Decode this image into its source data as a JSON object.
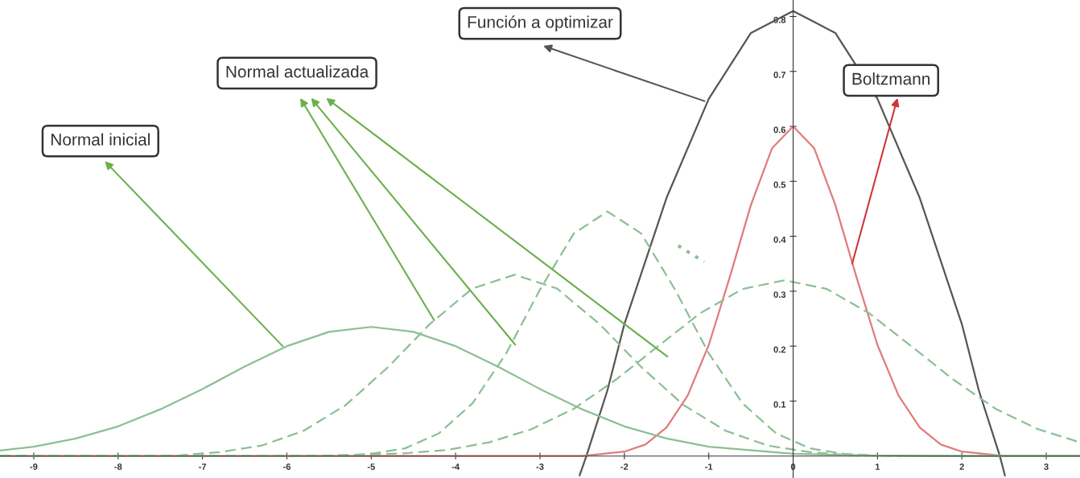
{
  "chart_data": {
    "type": "line",
    "xlim": [
      -9.4,
      3.4
    ],
    "ylim": [
      -0.04,
      0.83
    ],
    "xticks": [
      -9,
      -8,
      -7,
      -6,
      -5,
      -4,
      -3,
      -2,
      -1,
      0,
      1,
      2,
      3
    ],
    "yticks": [
      0.1,
      0.2,
      0.3,
      0.4,
      0.5,
      0.6,
      0.7,
      0.8
    ],
    "grid": false,
    "legend": false,
    "marker": "none",
    "series": [
      {
        "color": "#555555",
        "line_style": "solid",
        "x": [
          -2.53,
          -2.45,
          -2.2,
          -2,
          -1.5,
          -1,
          -0.5,
          0,
          0.5,
          1,
          1.5,
          2,
          2.2,
          2.45,
          2.51
        ],
        "values": [
          -0.035,
          0,
          0.12,
          0.24,
          0.47,
          0.65,
          0.77,
          0.81,
          0.77,
          0.65,
          0.47,
          0.24,
          0.12,
          0,
          -0.035
        ]
      },
      {
        "color": "#e07b7b",
        "line_style": "solid",
        "x": [
          -9.4,
          -2.5,
          -2,
          -1.75,
          -1.5,
          -1.25,
          -1,
          -0.75,
          -0.5,
          -0.25,
          0,
          0.25,
          0.5,
          0.75,
          1,
          1.25,
          1.5,
          1.75,
          2,
          2.5,
          3.4
        ],
        "values": [
          0,
          0,
          0.008,
          0.021,
          0.052,
          0.11,
          0.202,
          0.326,
          0.457,
          0.56,
          0.6,
          0.56,
          0.457,
          0.326,
          0.202,
          0.11,
          0.052,
          0.021,
          0.008,
          0,
          0
        ]
      },
      {
        "color": "#8cbf94",
        "line_style": "solid",
        "x": [
          -9.4,
          -9,
          -8.5,
          -8,
          -7.5,
          -7,
          -6.5,
          -6,
          -5.5,
          -5,
          -4.5,
          -4,
          -3.5,
          -3,
          -2.5,
          -2,
          -1.5,
          -1,
          0,
          1,
          2,
          3.4
        ],
        "values": [
          0.01,
          0.017,
          0.032,
          0.054,
          0.085,
          0.122,
          0.163,
          0.2,
          0.226,
          0.235,
          0.226,
          0.2,
          0.163,
          0.122,
          0.085,
          0.054,
          0.032,
          0.017,
          0.004,
          0.001,
          0,
          0
        ]
      },
      {
        "color": "#8cbf94",
        "line_style": "dashed",
        "x": [
          -9.4,
          -8.3,
          -7.3,
          -6.8,
          -6.3,
          -5.8,
          -5.3,
          -4.8,
          -4.3,
          -3.8,
          -3.3,
          -2.8,
          -2.3,
          -1.8,
          -1.3,
          -0.8,
          -0.3,
          0.2,
          0.7,
          1.7,
          3.4
        ],
        "values": [
          0,
          0,
          0.001,
          0.007,
          0.019,
          0.046,
          0.093,
          0.162,
          0.241,
          0.305,
          0.33,
          0.305,
          0.241,
          0.162,
          0.093,
          0.046,
          0.019,
          0.007,
          0.001,
          0,
          0
        ]
      },
      {
        "color": "#8cbf94",
        "line_style": "dashed",
        "x": [
          -9.4,
          -6.2,
          -5.4,
          -5.0,
          -4.6,
          -4.2,
          -3.8,
          -3.4,
          -3.0,
          -2.6,
          -2.2,
          -1.8,
          -1.4,
          -1.0,
          -0.6,
          -0.2,
          0.2,
          0.6,
          1.0,
          1.8,
          3.4
        ],
        "values": [
          0,
          0,
          0.001,
          0.004,
          0.014,
          0.041,
          0.096,
          0.187,
          0.303,
          0.405,
          0.445,
          0.405,
          0.303,
          0.187,
          0.096,
          0.041,
          0.014,
          0.004,
          0.001,
          0,
          0
        ]
      },
      {
        "color": "#8cbf94",
        "line_style": "dashed",
        "x": [
          -9.4,
          -6.1,
          -5.1,
          -4.6,
          -4.1,
          -3.6,
          -3.1,
          -2.6,
          -2.1,
          -1.6,
          -1.1,
          -0.6,
          -0.1,
          0.4,
          0.9,
          1.4,
          1.9,
          2.4,
          2.9,
          3.4
        ],
        "values": [
          0,
          0,
          0.002,
          0.005,
          0.011,
          0.025,
          0.049,
          0.086,
          0.139,
          0.2,
          0.26,
          0.304,
          0.32,
          0.304,
          0.26,
          0.2,
          0.139,
          0.086,
          0.049,
          0.025
        ]
      }
    ],
    "annotations": [
      {
        "text": "Normal inicial",
        "x": -6.05,
        "y": 0.2
      },
      "Normal actualizada",
      {
        "text": "Función a optimizar",
        "x": -1.05,
        "y": 0.646
      },
      {
        "text": "Boltzmann",
        "x": 0.7,
        "y": 0.35
      }
    ]
  }
}
